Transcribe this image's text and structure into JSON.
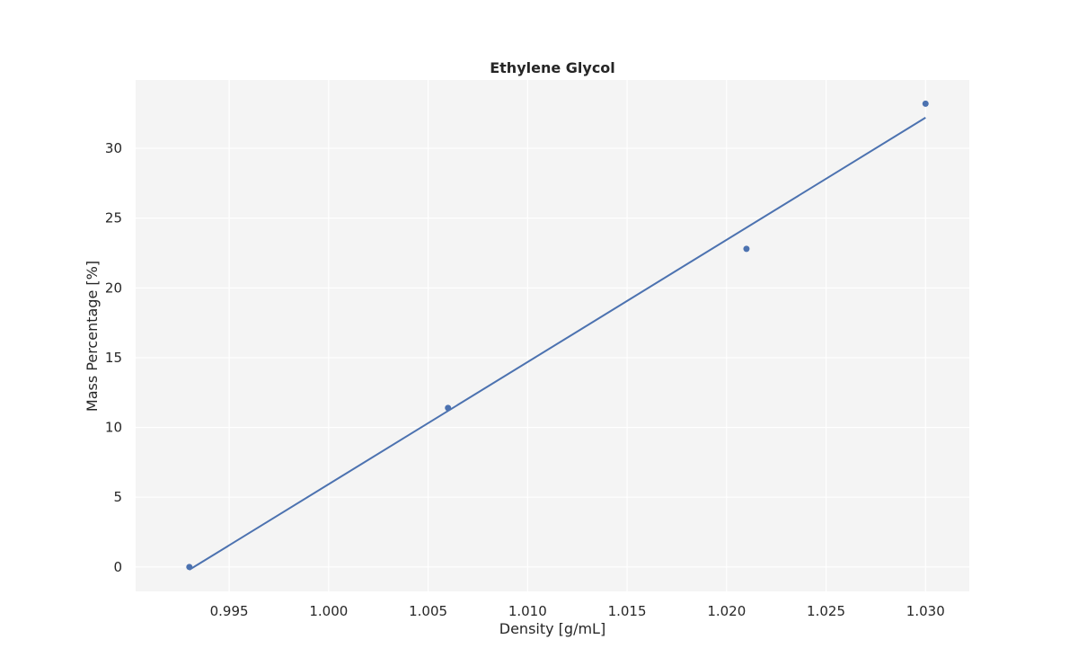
{
  "chart_data": {
    "type": "scatter",
    "title": "Ethylene Glycol",
    "xlabel": "Density [g/mL]",
    "ylabel": "Mass Percentage [%]",
    "xlim": [
      0.9903,
      1.0322
    ],
    "ylim": [
      -1.75,
      34.9
    ],
    "x_ticks": [
      0.995,
      1.0,
      1.005,
      1.01,
      1.015,
      1.02,
      1.025,
      1.03
    ],
    "x_tick_labels": [
      "0.995",
      "1.000",
      "1.005",
      "1.010",
      "1.015",
      "1.020",
      "1.025",
      "1.030"
    ],
    "y_ticks": [
      0,
      5,
      10,
      15,
      20,
      25,
      30
    ],
    "y_tick_labels": [
      "0",
      "5",
      "10",
      "15",
      "20",
      "25",
      "30"
    ],
    "grid": true,
    "series": [
      {
        "kind": "points",
        "x": [
          0.993,
          1.006,
          1.021,
          1.03
        ],
        "y": [
          0.0,
          11.4,
          22.8,
          33.2
        ]
      },
      {
        "kind": "fit-line",
        "x": [
          0.993,
          1.03
        ],
        "y": [
          -0.2,
          32.2
        ]
      }
    ],
    "colors": {
      "series": "#4c72b0",
      "plot_background": "#f4f4f4",
      "grid": "#ffffff",
      "text": "#262626"
    }
  }
}
